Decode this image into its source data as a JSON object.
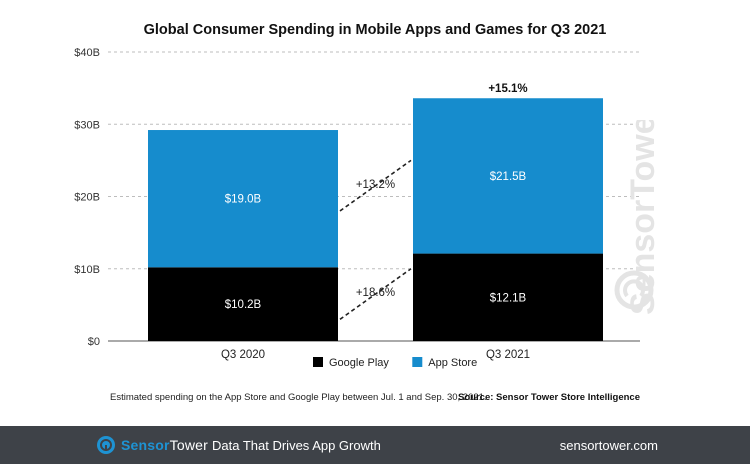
{
  "chart_data": {
    "type": "bar",
    "stacked": true,
    "title": "Global Consumer Spending in Mobile Apps and Games for Q3 2021",
    "categories": [
      "Q3 2020",
      "Q3 2021"
    ],
    "series": [
      {
        "name": "Google Play",
        "values": [
          10.2,
          12.1
        ],
        "labels": [
          "$10.2B",
          "$12.1B"
        ],
        "color": "#000000"
      },
      {
        "name": "App Store",
        "values": [
          19.0,
          21.5
        ],
        "labels": [
          "$19.0B",
          "$21.5B"
        ],
        "color": "#168ccd"
      }
    ],
    "y_ticks": [
      "$0",
      "$10B",
      "$20B",
      "$30B",
      "$40B"
    ],
    "ylim": [
      0,
      40
    ],
    "grid": true,
    "legend_position": "bottom-center",
    "growth_labels": {
      "google_play": "+18.6%",
      "app_store": "+13.2%",
      "total": "+15.1%"
    }
  },
  "footnote": "Estimated spending on the App Store and Google Play between Jul. 1 and Sep. 30, 2021.",
  "source": "Source: Sensor Tower Store Intelligence",
  "watermark": {
    "brand": "SensorTower"
  },
  "footer": {
    "brand_part1": "Sensor",
    "brand_part2": "Tower",
    "tagline": "Data That Drives App Growth",
    "url": "sensortower.com",
    "background": "#3e4248",
    "accent": "#1e93d3"
  }
}
